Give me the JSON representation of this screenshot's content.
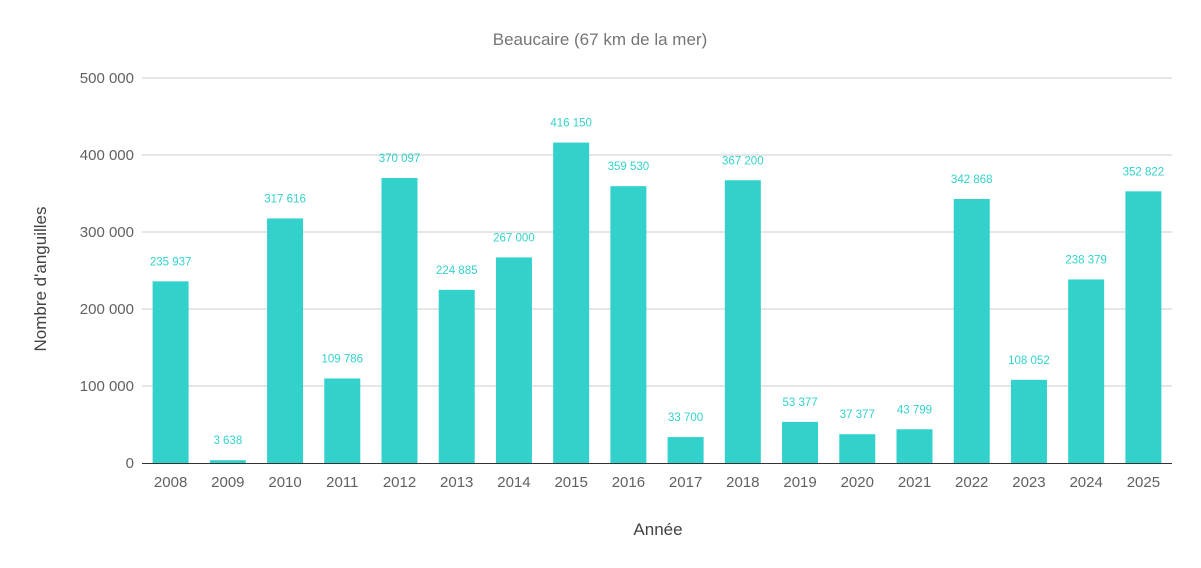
{
  "chart_data": {
    "type": "bar",
    "title": "Beaucaire (67 km de la mer)",
    "xlabel": "Année",
    "ylabel": "Nombre d'anguilles",
    "ylim": [
      0,
      500000
    ],
    "yticks": [
      0,
      100000,
      200000,
      300000,
      400000,
      500000
    ],
    "ytick_labels": [
      "0",
      "100 000",
      "200 000",
      "300 000",
      "400 000",
      "500 000"
    ],
    "grid": true,
    "legend": "none",
    "color": "#33d1cc",
    "categories": [
      "2008",
      "2009",
      "2010",
      "2011",
      "2012",
      "2013",
      "2014",
      "2015",
      "2016",
      "2017",
      "2018",
      "2019",
      "2020",
      "2021",
      "2022",
      "2023",
      "2024",
      "2025"
    ],
    "values": [
      235937,
      3638,
      317616,
      109786,
      370097,
      224885,
      267000,
      416150,
      359530,
      33700,
      367200,
      53377,
      37377,
      43799,
      342868,
      108052,
      238379,
      352822
    ],
    "data_labels": [
      "235 937",
      "3 638",
      "317 616",
      "109 786",
      "370 097",
      "224 885",
      "267 000",
      "416 150",
      "359 530",
      "33 700",
      "367 200",
      "53 377",
      "37 377",
      "43 799",
      "342 868",
      "108 052",
      "238 379",
      "352 822"
    ]
  }
}
